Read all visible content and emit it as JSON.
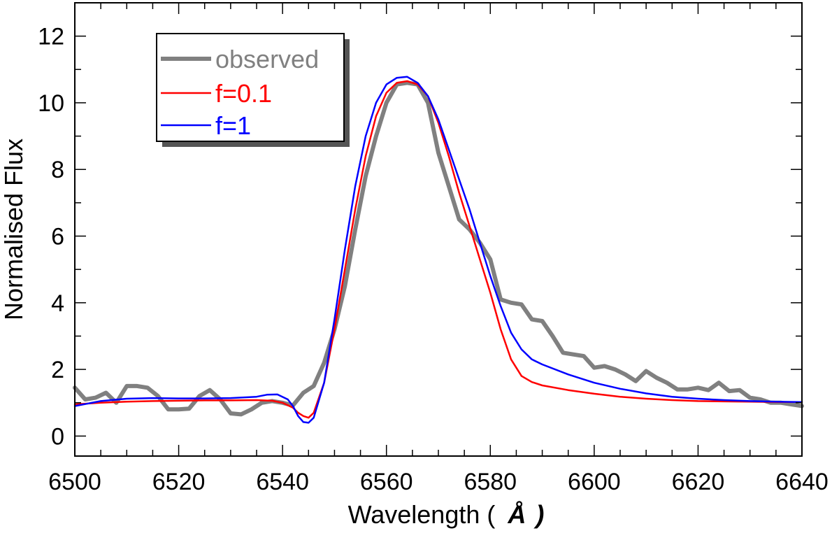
{
  "chart_data": {
    "type": "line",
    "title": "",
    "xlabel": "Wavelength (",
    "xlabel_unit": "Å",
    "xlabel_close": ")",
    "ylabel": "Normalised Flux",
    "xlim": [
      6500,
      6640
    ],
    "ylim": [
      -0.6,
      13
    ],
    "xticks": [
      6500,
      6520,
      6540,
      6560,
      6580,
      6600,
      6620,
      6640
    ],
    "yticks": [
      0,
      2,
      4,
      6,
      8,
      10,
      12
    ],
    "grid": false,
    "legend_position": "top-left",
    "series": [
      {
        "name": "observed",
        "color": "#808080",
        "x": [
          6500,
          6502,
          6504,
          6506,
          6508,
          6510,
          6512,
          6514,
          6516,
          6518,
          6520,
          6522,
          6524,
          6526,
          6528,
          6530,
          6532,
          6534,
          6536,
          6538,
          6540,
          6542,
          6544,
          6546,
          6548,
          6550,
          6552,
          6554,
          6556,
          6558,
          6560,
          6562,
          6564,
          6566,
          6568,
          6570,
          6572,
          6574,
          6576,
          6578,
          6580,
          6582,
          6584,
          6586,
          6588,
          6590,
          6592,
          6594,
          6596,
          6598,
          6600,
          6602,
          6604,
          6606,
          6608,
          6610,
          6612,
          6614,
          6616,
          6618,
          6620,
          6622,
          6624,
          6626,
          6628,
          6630,
          6632,
          6634,
          6636,
          6638,
          6640
        ],
        "y": [
          1.45,
          1.1,
          1.15,
          1.3,
          1.0,
          1.5,
          1.5,
          1.45,
          1.2,
          0.8,
          0.8,
          0.82,
          1.2,
          1.38,
          1.1,
          0.68,
          0.65,
          0.8,
          1.0,
          1.05,
          1.0,
          0.92,
          1.3,
          1.5,
          2.2,
          3.2,
          4.5,
          6.2,
          7.8,
          9.0,
          10.0,
          10.55,
          10.6,
          10.55,
          10.0,
          8.5,
          7.5,
          6.5,
          6.2,
          5.8,
          5.3,
          4.1,
          4.0,
          3.95,
          3.5,
          3.45,
          3.0,
          2.5,
          2.45,
          2.4,
          2.05,
          2.1,
          2.0,
          1.85,
          1.65,
          1.95,
          1.75,
          1.6,
          1.4,
          1.4,
          1.45,
          1.38,
          1.6,
          1.35,
          1.38,
          1.15,
          1.1,
          1.0,
          1.0,
          0.95,
          0.9
        ]
      },
      {
        "name": "f=0.1",
        "color": "#ff0000",
        "x": [
          6500,
          6505,
          6510,
          6515,
          6520,
          6525,
          6530,
          6535,
          6538,
          6540,
          6542,
          6543,
          6544,
          6545,
          6546,
          6548,
          6550,
          6552,
          6554,
          6556,
          6558,
          6560,
          6562,
          6564,
          6566,
          6568,
          6570,
          6572,
          6574,
          6576,
          6578,
          6580,
          6582,
          6584,
          6586,
          6588,
          6590,
          6595,
          6600,
          6605,
          6610,
          6615,
          6620,
          6625,
          6630,
          6635,
          6640
        ],
        "y": [
          0.95,
          1.0,
          1.03,
          1.05,
          1.06,
          1.07,
          1.07,
          1.08,
          1.06,
          1.0,
          0.85,
          0.7,
          0.6,
          0.55,
          0.7,
          1.6,
          3.2,
          5.0,
          6.8,
          8.4,
          9.6,
          10.3,
          10.6,
          10.65,
          10.55,
          10.2,
          9.4,
          8.4,
          7.3,
          6.3,
          5.3,
          4.3,
          3.2,
          2.3,
          1.8,
          1.62,
          1.52,
          1.38,
          1.27,
          1.18,
          1.12,
          1.08,
          1.05,
          1.04,
          1.03,
          1.02,
          1.02
        ]
      },
      {
        "name": "f=1",
        "color": "#0000ff",
        "x": [
          6500,
          6505,
          6510,
          6515,
          6520,
          6525,
          6530,
          6535,
          6537,
          6539,
          6541,
          6542,
          6543,
          6544,
          6545,
          6546,
          6548,
          6550,
          6552,
          6554,
          6556,
          6558,
          6560,
          6562,
          6564,
          6566,
          6568,
          6570,
          6572,
          6574,
          6576,
          6578,
          6580,
          6582,
          6584,
          6586,
          6588,
          6590,
          6595,
          6600,
          6605,
          6610,
          6615,
          6620,
          6625,
          6630,
          6635,
          6640
        ],
        "y": [
          0.9,
          1.05,
          1.12,
          1.14,
          1.13,
          1.13,
          1.14,
          1.18,
          1.24,
          1.25,
          1.1,
          0.9,
          0.6,
          0.42,
          0.4,
          0.55,
          1.6,
          3.5,
          5.6,
          7.5,
          9.0,
          10.0,
          10.55,
          10.75,
          10.78,
          10.6,
          10.2,
          9.5,
          8.6,
          7.7,
          6.8,
          5.8,
          4.8,
          3.9,
          3.1,
          2.6,
          2.3,
          2.15,
          1.85,
          1.6,
          1.42,
          1.28,
          1.18,
          1.12,
          1.08,
          1.05,
          1.03,
          1.02
        ]
      }
    ]
  }
}
